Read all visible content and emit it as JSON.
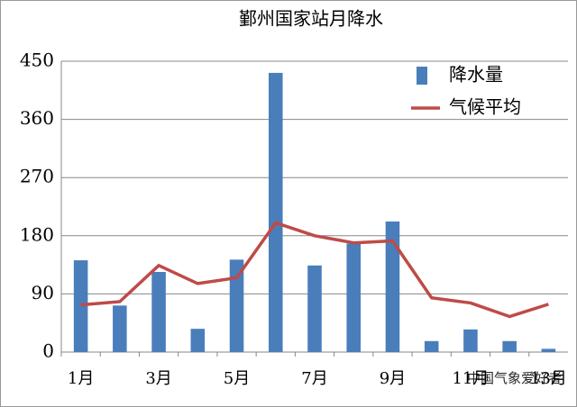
{
  "chart_data": {
    "type": "bar_line",
    "title": "鄞州国家站月降水",
    "categories": [
      "1月",
      null,
      "3月",
      null,
      "5月",
      null,
      "7月",
      null,
      "9月",
      null,
      "11月",
      null,
      "13月"
    ],
    "series": [
      {
        "name": "降水量",
        "type": "bar",
        "color": "#4a7ebb",
        "values": [
          142,
          72,
          124,
          36,
          143,
          432,
          134,
          168,
          202,
          17,
          35,
          17,
          5
        ]
      },
      {
        "name": "气候平均",
        "type": "line",
        "color": "#be4b48",
        "values": [
          73,
          78,
          134,
          106,
          115,
          200,
          180,
          169,
          172,
          84,
          76,
          55,
          74
        ]
      }
    ],
    "ylim": [
      0,
      450
    ],
    "yticks": [
      0,
      90,
      180,
      270,
      360,
      450
    ],
    "grid": true,
    "legend": "upper right",
    "watermark": "中国气象爱好者"
  }
}
